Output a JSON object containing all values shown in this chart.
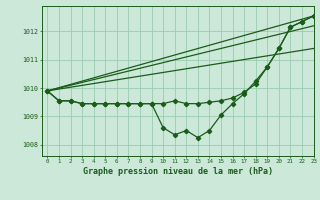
{
  "title": "Graphe pression niveau de la mer (hPa)",
  "bg_color": "#cce8d8",
  "grid_color": "#99ccb0",
  "line_color": "#1a5c1a",
  "xlim": [
    -0.5,
    23
  ],
  "ylim": [
    1007.6,
    1012.9
  ],
  "yticks": [
    1008,
    1009,
    1010,
    1011,
    1012
  ],
  "xticks": [
    0,
    1,
    2,
    3,
    4,
    5,
    6,
    7,
    8,
    9,
    10,
    11,
    12,
    13,
    14,
    15,
    16,
    17,
    18,
    19,
    20,
    21,
    22,
    23
  ],
  "upper_line": [
    [
      0,
      1009.9
    ],
    [
      23,
      1012.55
    ]
  ],
  "mid_upper_line": [
    [
      0,
      1009.9
    ],
    [
      23,
      1012.2
    ]
  ],
  "mid_lower_line": [
    [
      0,
      1009.9
    ],
    [
      23,
      1011.4
    ]
  ],
  "dip_curve": [
    1009.9,
    1009.55,
    1009.55,
    1009.45,
    1009.45,
    1009.45,
    1009.45,
    1009.45,
    1009.45,
    1009.45,
    1008.6,
    1008.35,
    1008.5,
    1008.25,
    1008.5,
    1009.05,
    1009.45,
    1009.8,
    1010.25,
    1010.75,
    1011.4,
    1012.15,
    1012.35,
    1012.55
  ],
  "flat_curve": [
    1009.9,
    1009.55,
    1009.55,
    1009.45,
    1009.45,
    1009.45,
    1009.45,
    1009.45,
    1009.45,
    1009.45,
    1009.45,
    1009.55,
    1009.45,
    1009.45,
    1009.5,
    1009.55,
    1009.65,
    1009.85,
    1010.15,
    1010.75,
    1011.4,
    1012.15,
    1012.35,
    1012.55
  ]
}
